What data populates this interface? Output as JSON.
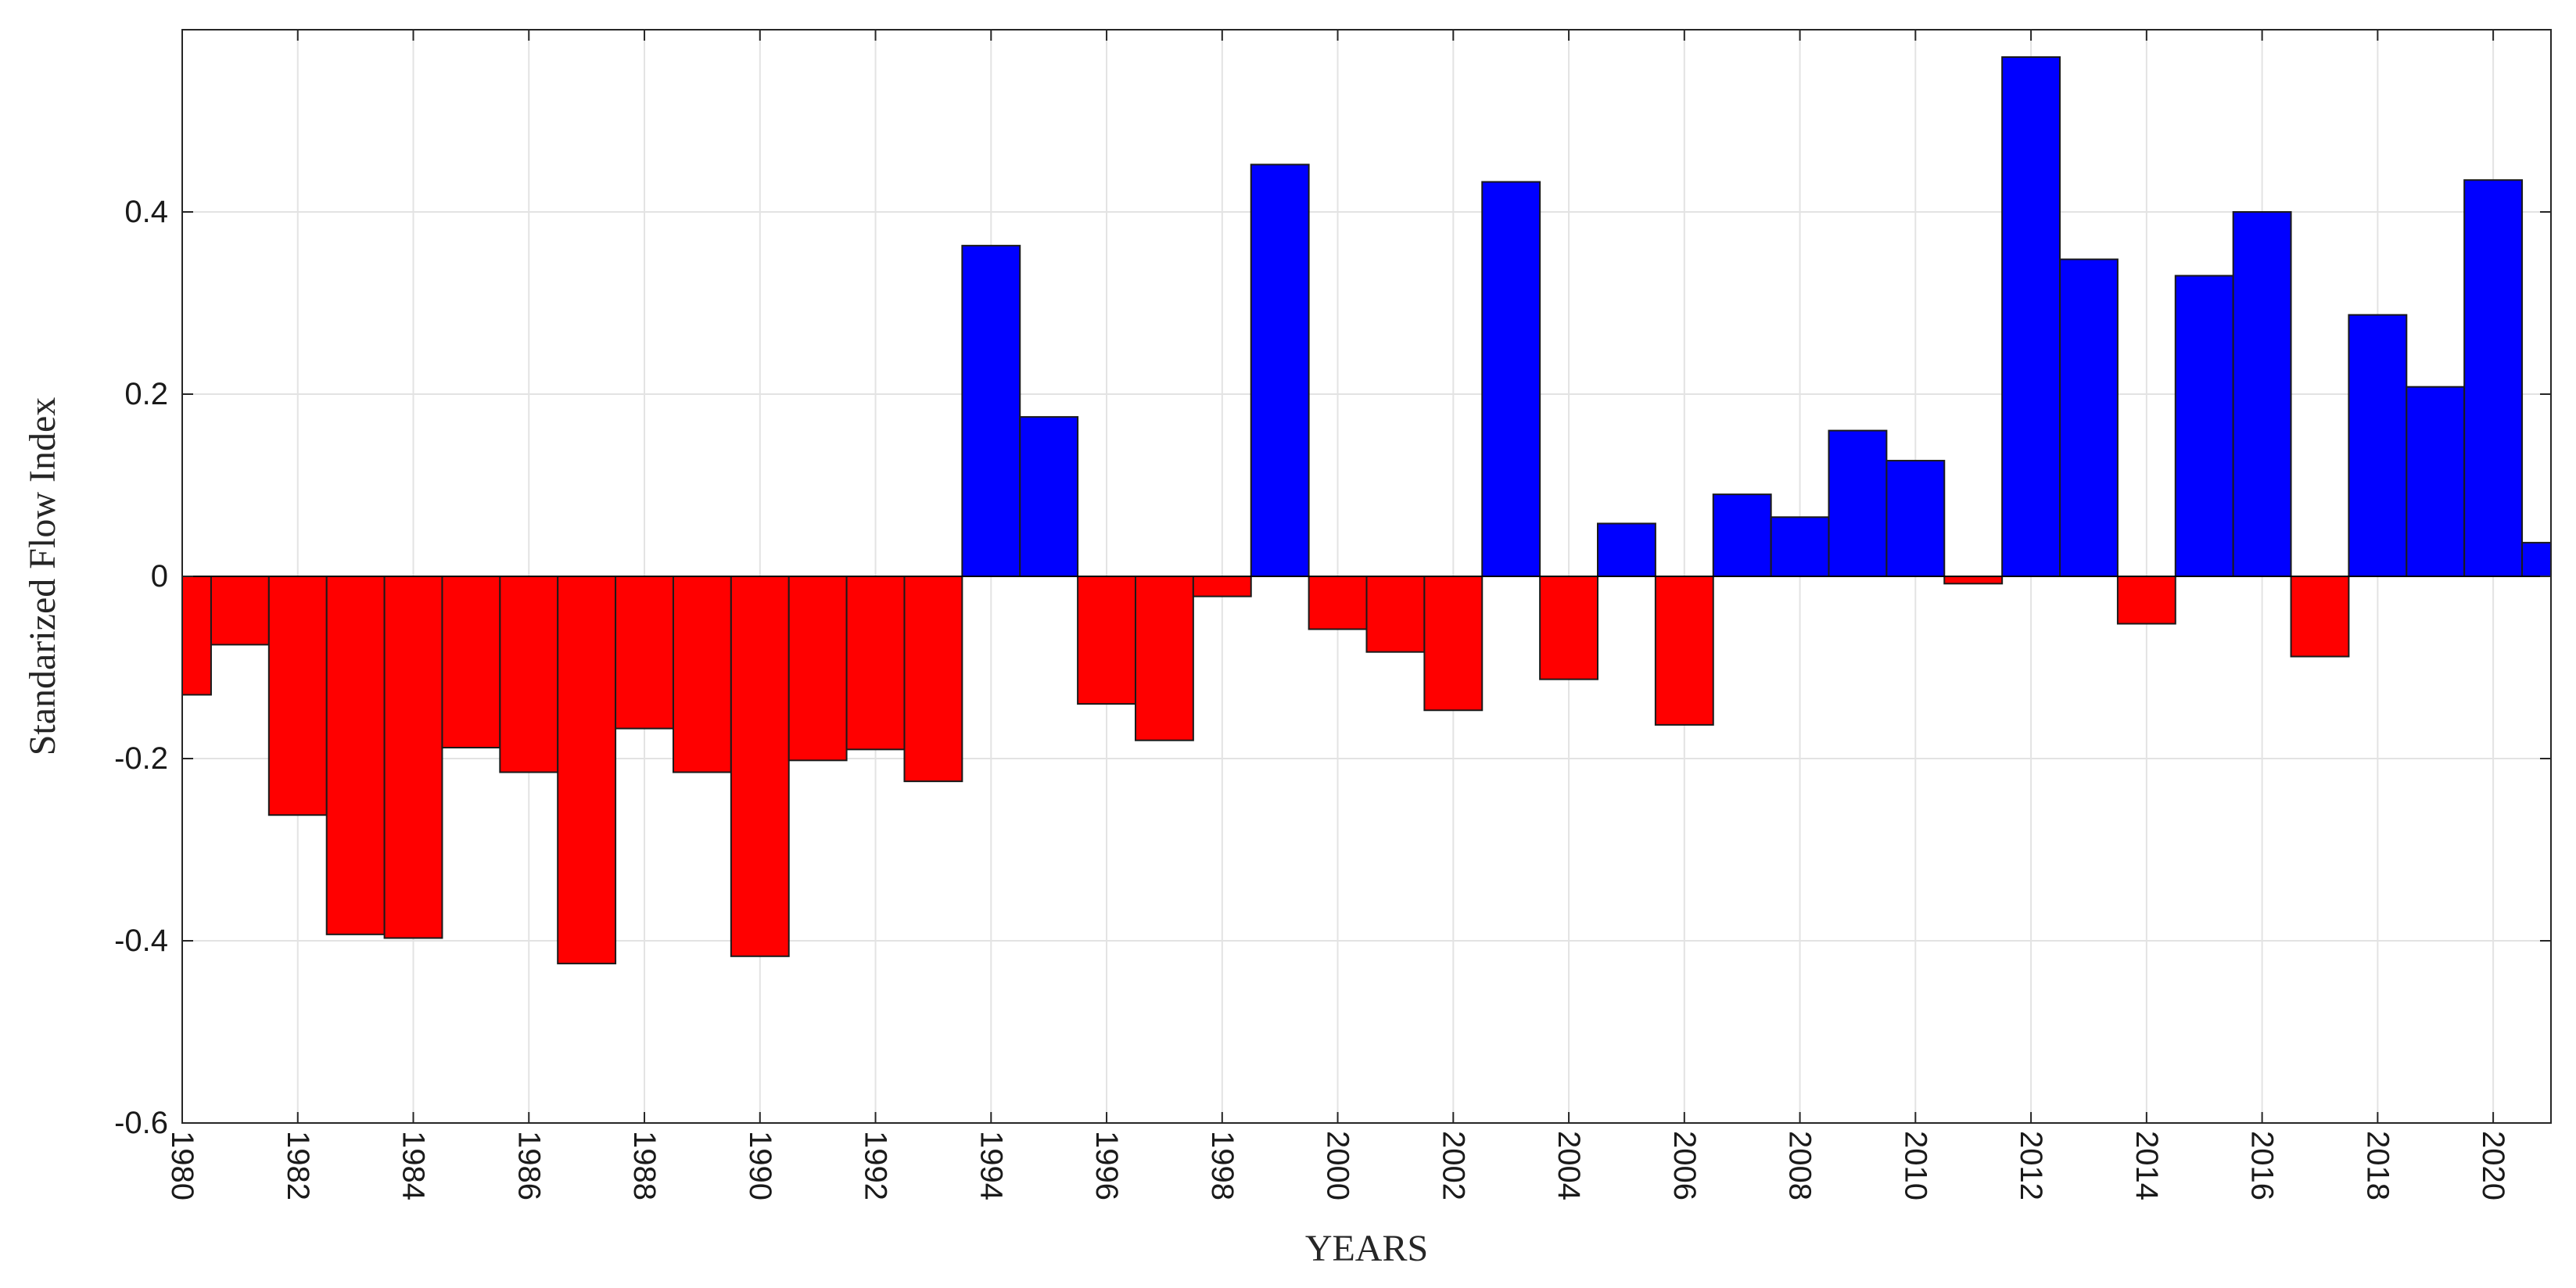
{
  "chart_data": {
    "type": "bar",
    "xlabel": "YEARS",
    "ylabel": "Standarized Flow Index",
    "xlim": [
      1980,
      2021
    ],
    "ylim": [
      -0.6,
      0.6
    ],
    "x_ticks": [
      1980,
      1982,
      1984,
      1986,
      1988,
      1990,
      1992,
      1994,
      1996,
      1998,
      2000,
      2002,
      2004,
      2006,
      2008,
      2010,
      2012,
      2014,
      2016,
      2018,
      2020
    ],
    "y_ticks": [
      -0.6,
      -0.4,
      -0.2,
      0,
      0.2,
      0.4
    ],
    "y_tick_labels": [
      "-0.6",
      "-0.4",
      "-0.2",
      "0",
      "0.2",
      "0.4"
    ],
    "grid": true,
    "colors": {
      "positive": "#0000ff",
      "negative": "#ff0000"
    },
    "years": [
      1980,
      1981,
      1982,
      1983,
      1984,
      1985,
      1986,
      1987,
      1988,
      1989,
      1990,
      1991,
      1992,
      1993,
      1994,
      1995,
      1996,
      1997,
      1998,
      1999,
      2000,
      2001,
      2002,
      2003,
      2004,
      2005,
      2006,
      2007,
      2008,
      2009,
      2010,
      2011,
      2012,
      2013,
      2014,
      2015,
      2016,
      2017,
      2018,
      2019,
      2020,
      2021
    ],
    "values": [
      -0.13,
      -0.075,
      -0.262,
      -0.393,
      -0.397,
      -0.188,
      -0.215,
      -0.425,
      -0.167,
      -0.215,
      -0.417,
      -0.202,
      -0.19,
      -0.225,
      0.363,
      0.175,
      -0.14,
      -0.18,
      -0.022,
      0.452,
      -0.058,
      -0.083,
      -0.147,
      0.433,
      -0.113,
      0.058,
      -0.163,
      0.09,
      0.065,
      0.16,
      0.127,
      -0.008,
      0.57,
      0.348,
      -0.052,
      0.33,
      0.4,
      -0.088,
      0.287,
      0.208,
      0.435,
      0.037
    ]
  }
}
